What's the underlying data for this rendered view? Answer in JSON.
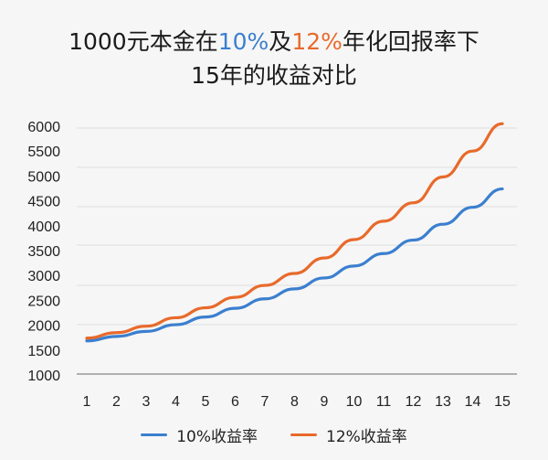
{
  "title": {
    "line1_prefix": "1000元本金在",
    "rate_a": "10%",
    "line1_mid": "及",
    "rate_b": "12%",
    "line1_suffix": "年化回报率下",
    "line2": "15年的收益对比"
  },
  "colors": {
    "series_a": "#3b7fcf",
    "series_b": "#e86a2b",
    "grid": "#dedede",
    "axis": "#9a9a9a"
  },
  "chart_data": {
    "type": "line",
    "title": "1000元本金在10%及12%年化回报率下15年的收益对比",
    "x": [
      1,
      2,
      3,
      4,
      5,
      6,
      7,
      8,
      9,
      10,
      11,
      12,
      13,
      14,
      15
    ],
    "x_ticks": [
      "1",
      "2",
      "3",
      "4",
      "5",
      "6",
      "7",
      "8",
      "9",
      "10",
      "11",
      "12",
      "13",
      "14",
      "15"
    ],
    "y_ticks": [
      "6000",
      "5500",
      "5000",
      "4500",
      "4000",
      "3500",
      "3000",
      "2500",
      "2000",
      "1500",
      "1000"
    ],
    "ylim": [
      1000,
      6000
    ],
    "grid": true,
    "legend": "bottom",
    "series": [
      {
        "name": "10%收益率",
        "color": "#3b7fcf",
        "values": [
          1685,
          1775,
          1875,
          2010,
          2165,
          2340,
          2530,
          2730,
          2950,
          3190,
          3440,
          3710,
          4030,
          4370,
          4740
        ]
      },
      {
        "name": "12%收益率",
        "color": "#e86a2b",
        "values": [
          1740,
          1850,
          1980,
          2150,
          2350,
          2560,
          2800,
          3040,
          3350,
          3720,
          4090,
          4460,
          4980,
          5500,
          6050
        ]
      }
    ]
  }
}
